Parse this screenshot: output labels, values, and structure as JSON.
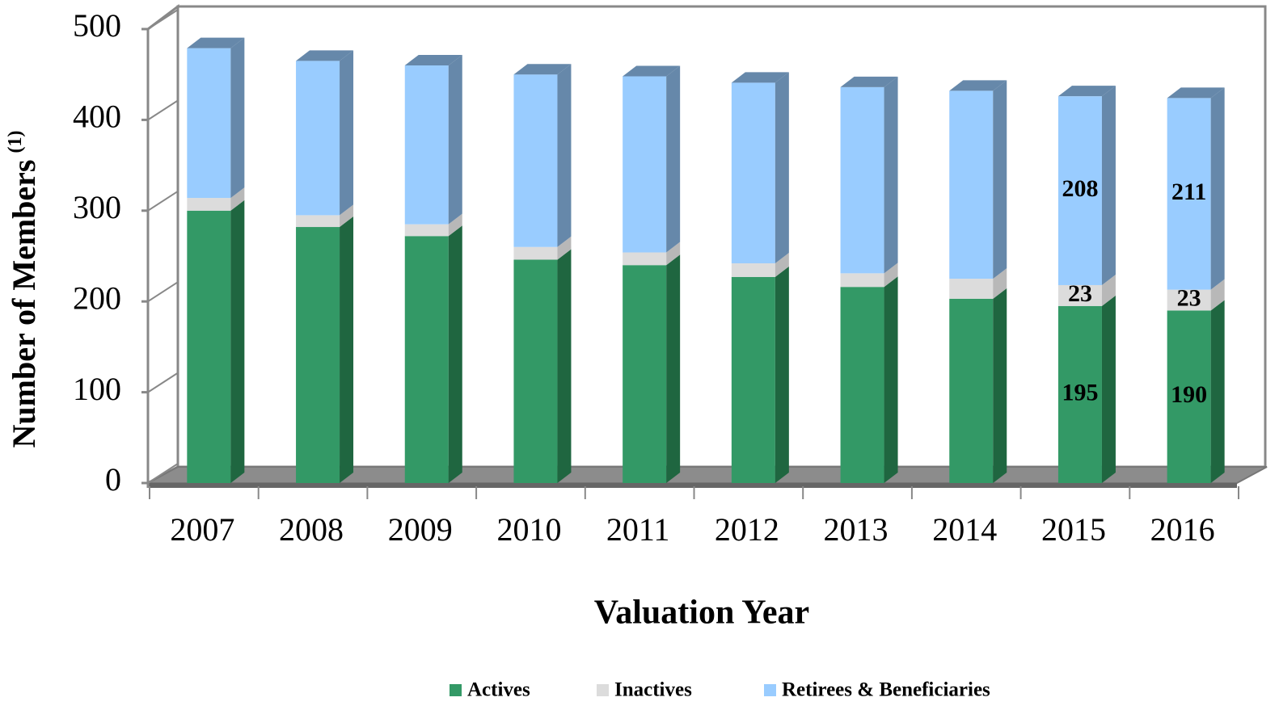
{
  "chart_data": {
    "type": "bar3d_stacked",
    "xlabel": "Valuation Year",
    "ylabel": "Number of Members",
    "ylabel_note": "(1)",
    "categories": [
      "2007",
      "2008",
      "2009",
      "2010",
      "2011",
      "2012",
      "2013",
      "2014",
      "2015",
      "2016"
    ],
    "series": [
      {
        "name": "Actives",
        "color": "#339966",
        "side_color": "#1f6640",
        "values": [
          300,
          282,
          272,
          246,
          240,
          227,
          216,
          203,
          195,
          190
        ],
        "value_labels": [
          null,
          null,
          null,
          null,
          null,
          null,
          null,
          null,
          "195",
          "190"
        ]
      },
      {
        "name": "Inactives",
        "color": "#dcdcdc",
        "side_color": "#b8b8b8",
        "values": [
          14,
          13,
          13,
          14,
          14,
          15,
          15,
          22,
          23,
          23
        ],
        "value_labels": [
          null,
          null,
          null,
          null,
          null,
          null,
          null,
          null,
          "23",
          "23"
        ]
      },
      {
        "name": "Retirees & Beneficiaries",
        "color": "#99ccff",
        "side_color": "#6688aa",
        "values": [
          165,
          170,
          175,
          190,
          194,
          199,
          205,
          207,
          208,
          211
        ],
        "value_labels": [
          null,
          null,
          null,
          null,
          null,
          null,
          null,
          null,
          "208",
          "211"
        ]
      }
    ],
    "ylim": [
      0,
      500
    ],
    "yticks": [
      0,
      100,
      200,
      300,
      400,
      500
    ],
    "legend": "bottom"
  }
}
